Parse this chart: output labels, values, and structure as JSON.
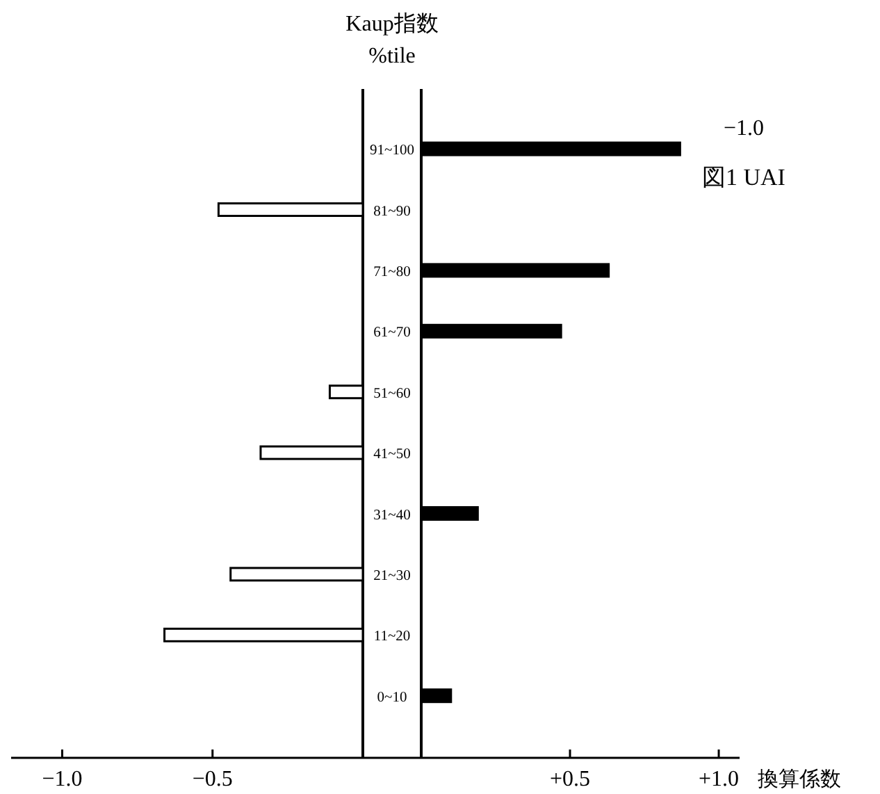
{
  "chart_data": [
    {
      "type": "bar",
      "orientation": "horizontal",
      "ylabel": "Kaup指数\n%tile",
      "categories": [
        "91~100",
        "81~90",
        "71~80",
        "61~70",
        "51~60",
        "41~50",
        "31~40",
        "21~30",
        "11~20",
        "0~10"
      ],
      "values": [
        null,
        -0.48,
        null,
        null,
        -0.11,
        -0.34,
        null,
        -0.44,
        -0.66,
        null
      ],
      "color": "#ffffff",
      "xlim": [
        -1.17,
        0
      ],
      "xticks": [
        {
          "value": -1.0,
          "label": "−1.0"
        },
        {
          "value": -0.5,
          "label": "−0.5"
        }
      ]
    },
    {
      "type": "bar",
      "orientation": "horizontal",
      "xlabel": "換算係数",
      "categories": [
        null,
        null,
        null,
        null,
        null,
        null,
        null,
        null,
        null,
        null
      ],
      "values": [
        0.87,
        null,
        0.63,
        0.47,
        null,
        null,
        0.19,
        null,
        null,
        0.1
      ],
      "color": "#000000",
      "xlim": [
        0,
        1.07
      ],
      "xticks": [
        {
          "value": 0.5,
          "label": "+0.5"
        },
        {
          "value": 1.0,
          "label": "+1.0"
        }
      ],
      "annotations": [
        "−1.0",
        "図1 UAI"
      ]
    }
  ]
}
